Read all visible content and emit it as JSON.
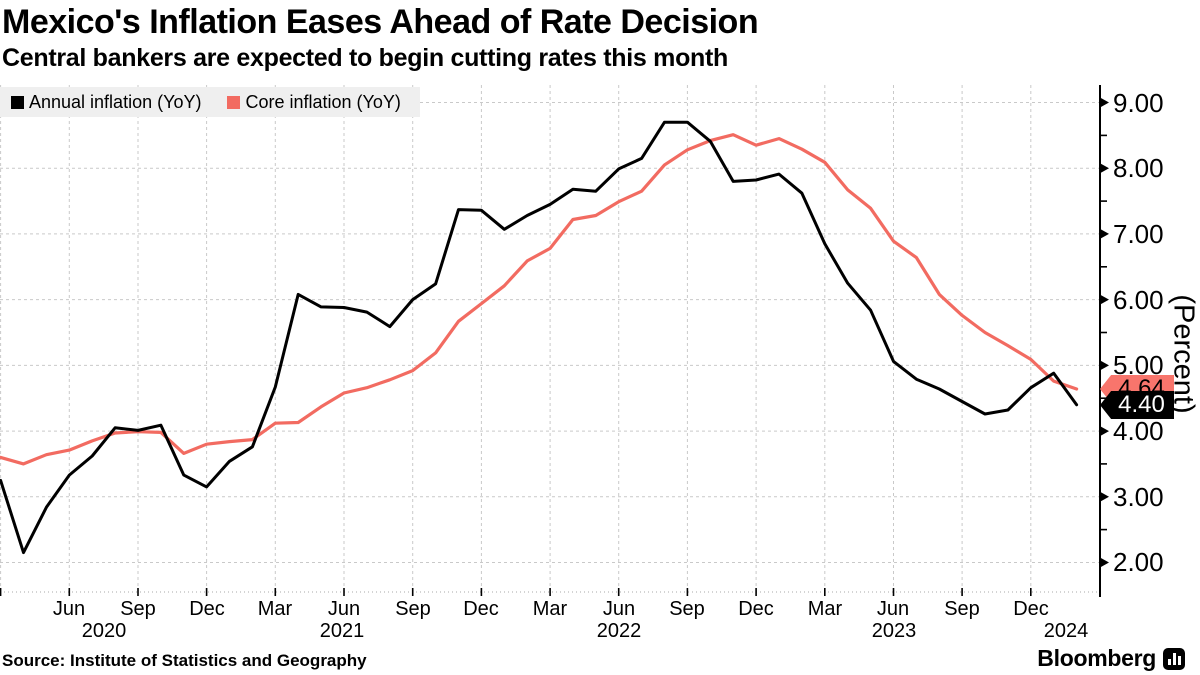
{
  "header": {
    "title": "Mexico's Inflation Eases Ahead of Rate Decision",
    "subtitle": "Central bankers are expected to begin cutting rates this month"
  },
  "legend": [
    {
      "label": "Annual inflation (YoY)",
      "color": "#000000"
    },
    {
      "label": "Core inflation (YoY)",
      "color": "#f26b61"
    }
  ],
  "source": "Source: Institute of Statistics and Geography",
  "brand": {
    "name": "Bloomberg",
    "icon": "bloomberg-chart-bubble-icon"
  },
  "colors": {
    "annual_line": "#000000",
    "core_line": "#f26b61",
    "grid": "#c9c9c9",
    "legend_background": "#efefef",
    "core_tag_background": "#f8756c"
  },
  "chart_data": {
    "type": "line",
    "title": "Mexico's Inflation Eases Ahead of Rate Decision",
    "ylabel": "(Percent)",
    "x_start": "Mar 2020",
    "x_end": "Feb 2024",
    "x_step": "1 month",
    "ylim": [
      1.55,
      9.27
    ],
    "grid": "dashed, every 1.00 horizontal and every 3 months vertical",
    "legend_position": "top-left inside plot",
    "yticks": [
      "9.00",
      "8.00",
      "7.00",
      "6.00",
      "5.00",
      "4.00",
      "3.00",
      "2.00"
    ],
    "ytick_values": [
      9,
      8,
      7,
      6,
      5,
      4,
      3,
      2
    ],
    "xticks": {
      "months": [
        "Jun",
        "Sep",
        "Dec",
        "Mar",
        "Jun",
        "Sep",
        "Dec",
        "Mar",
        "Jun",
        "Sep",
        "Dec",
        "Mar",
        "Jun",
        "Sep",
        "Dec"
      ],
      "years": [
        "2020",
        "2021",
        "2022",
        "2023",
        "2024"
      ]
    },
    "series": [
      {
        "name": "Core inflation (YoY)",
        "color": "#f26b61",
        "end_label": "4.64",
        "values": [
          3.6,
          3.5,
          3.64,
          3.71,
          3.85,
          3.97,
          3.99,
          3.98,
          3.66,
          3.8,
          3.84,
          3.87,
          4.12,
          4.13,
          4.37,
          4.58,
          4.66,
          4.78,
          4.92,
          5.19,
          5.67,
          5.94,
          6.21,
          6.59,
          6.78,
          7.22,
          7.28,
          7.49,
          7.65,
          8.05,
          8.28,
          8.42,
          8.51,
          8.35,
          8.45,
          8.29,
          8.09,
          7.67,
          7.39,
          6.89,
          6.64,
          6.08,
          5.76,
          5.5,
          5.3,
          5.09,
          4.76,
          4.64
        ]
      },
      {
        "name": "Annual inflation (YoY)",
        "color": "#000000",
        "end_label": "4.40",
        "values": [
          3.25,
          2.15,
          2.84,
          3.33,
          3.62,
          4.05,
          4.01,
          4.09,
          3.33,
          3.15,
          3.54,
          3.76,
          4.67,
          6.08,
          5.89,
          5.88,
          5.81,
          5.59,
          6.0,
          6.24,
          7.37,
          7.36,
          7.07,
          7.28,
          7.45,
          7.68,
          7.65,
          7.99,
          8.15,
          8.7,
          8.7,
          8.41,
          7.8,
          7.82,
          7.91,
          7.62,
          6.85,
          6.25,
          5.84,
          5.06,
          4.79,
          4.64,
          4.45,
          4.26,
          4.32,
          4.66,
          4.88,
          4.4
        ]
      }
    ]
  }
}
